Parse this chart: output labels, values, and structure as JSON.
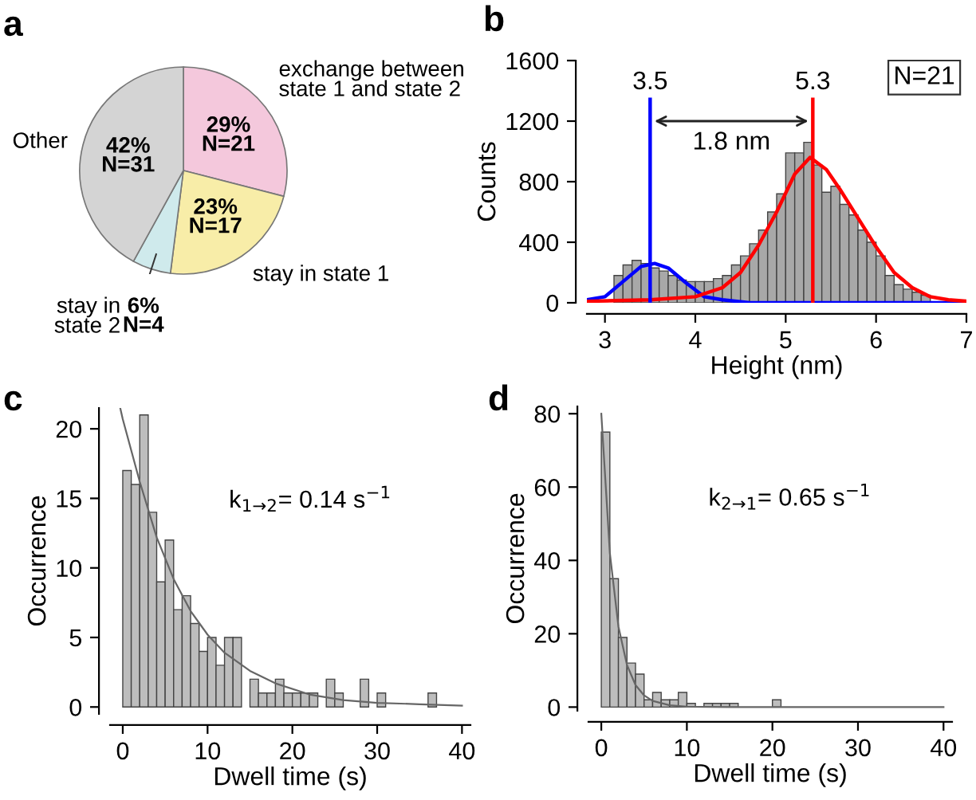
{
  "chart_data": [
    {
      "type": "pie",
      "title": "a",
      "categories": [
        "exchange between\nstate 1 and state 2",
        "stay in state 1",
        "stay in\nstate 2",
        "Other"
      ],
      "values": [
        29,
        23,
        6,
        42
      ],
      "colors": [
        "#f4c8dc",
        "#f8eda8",
        "#cfeaec",
        "#d4d4d4"
      ],
      "value_labels": [
        "29%\nN=21",
        "23%\nN=17",
        "6%\nN=4",
        "42%\nN=31"
      ],
      "legend": false
    },
    {
      "type": "histogram",
      "title": "b",
      "xlabel": "Height (nm)",
      "ylabel": "Counts",
      "xlim": [
        2.8,
        7
      ],
      "xticks": [
        3,
        4,
        5,
        6,
        7
      ],
      "ylim": [
        0,
        1600
      ],
      "yticks": [
        0,
        400,
        800,
        1200,
        1600
      ],
      "series": [
        {
          "type": "histogram",
          "color": "#a8a8a8",
          "bins": [
            3.0,
            3.1,
            3.2,
            3.3,
            3.4,
            3.5,
            3.6,
            3.7,
            3.8,
            3.9,
            4.0,
            4.1,
            4.2,
            4.3,
            4.4,
            4.5,
            4.6,
            4.7,
            4.8,
            4.9,
            5.0,
            5.1,
            5.2,
            5.3,
            5.4,
            5.5,
            5.6,
            5.7,
            5.8,
            5.9,
            6.0,
            6.1,
            6.2,
            6.3,
            6.4,
            6.5,
            6.6
          ],
          "values": [
            null,
            180,
            250,
            280,
            260,
            230,
            210,
            180,
            150,
            140,
            140,
            140,
            160,
            180,
            250,
            310,
            390,
            480,
            600,
            720,
            990,
            990,
            1060,
            910,
            730,
            770,
            650,
            580,
            480,
            400,
            310,
            180,
            120,
            90,
            70,
            50
          ]
        },
        {
          "type": "line",
          "color": "#0000ff",
          "x": [
            2.8,
            3.0,
            3.2,
            3.4,
            3.55,
            3.7,
            3.9,
            4.1,
            4.3,
            4.6,
            5.0,
            6.0,
            7.0
          ],
          "values": [
            20,
            40,
            140,
            240,
            260,
            230,
            130,
            40,
            20,
            0,
            0,
            0,
            0
          ]
        },
        {
          "type": "line",
          "color": "#ff0000",
          "x": [
            2.8,
            3.5,
            4.0,
            4.3,
            4.5,
            4.7,
            4.9,
            5.1,
            5.27,
            5.45,
            5.6,
            5.8,
            6.0,
            6.2,
            6.4,
            6.6,
            6.8,
            7.0
          ],
          "values": [
            10,
            20,
            40,
            100,
            200,
            380,
            600,
            850,
            960,
            880,
            750,
            560,
            370,
            200,
            100,
            40,
            20,
            10
          ]
        }
      ],
      "ref_lines": [
        {
          "axis": "x",
          "value": 3.5,
          "label": "3.5",
          "color": "#0000ff"
        },
        {
          "axis": "x",
          "value": 5.3,
          "label": "5.3",
          "color": "#ff0000"
        }
      ],
      "annotations": [
        "1.8 nm",
        "N=21"
      ],
      "legend": false,
      "grid": false
    },
    {
      "type": "histogram",
      "title": "c",
      "xlabel": "Dwell time (s)",
      "ylabel": "Occurrence",
      "xlim": [
        -1.5,
        41
      ],
      "xticks": [
        0,
        10,
        20,
        30,
        40
      ],
      "ylim": [
        -0.5,
        21.5
      ],
      "yticks": [
        0,
        5,
        10,
        15,
        20
      ],
      "series": [
        {
          "type": "histogram",
          "color": "#bdbdbd",
          "bins": [
            0,
            1,
            2,
            3,
            4,
            5,
            6,
            7,
            8,
            9,
            10,
            11,
            12,
            13,
            14,
            15,
            16,
            17,
            18,
            19,
            20,
            21,
            22,
            23,
            24,
            25,
            26,
            27,
            28,
            29,
            30,
            31,
            32,
            33,
            34,
            35,
            36,
            37
          ],
          "values": [
            17,
            16,
            21,
            14,
            9,
            12,
            7,
            8,
            6,
            4,
            5,
            3,
            5,
            5,
            null,
            2,
            1,
            1,
            2,
            1,
            1,
            1,
            1,
            null,
            2,
            1,
            null,
            null,
            2,
            null,
            1,
            null,
            null,
            null,
            null,
            null,
            1
          ]
        },
        {
          "type": "line",
          "color": "#666666",
          "x": [
            -0.3,
            0,
            2,
            4,
            6,
            8,
            10,
            12,
            15,
            18,
            22,
            26,
            30,
            35,
            40
          ],
          "values": [
            21.5,
            20.7,
            16.2,
            12.2,
            9.2,
            6.9,
            5.2,
            3.9,
            2.6,
            1.7,
            0.9,
            0.5,
            0.3,
            0.2,
            0.1
          ]
        }
      ],
      "annotations": [
        "k$_{1→2}$= 0.14 s$^{−1}$"
      ],
      "legend": false,
      "grid": false
    },
    {
      "type": "histogram",
      "title": "d",
      "xlabel": "Dwell time (s)",
      "ylabel": "Occurrence",
      "xlim": [
        -1.5,
        41
      ],
      "xticks": [
        0,
        10,
        20,
        30,
        40
      ],
      "ylim": [
        -1,
        82
      ],
      "yticks": [
        0,
        20,
        40,
        60,
        80
      ],
      "series": [
        {
          "type": "histogram",
          "color": "#bdbdbd",
          "bins": [
            0,
            1,
            2,
            3,
            4,
            5,
            6,
            7,
            8,
            9,
            10,
            11,
            12,
            13,
            14,
            15,
            16,
            17,
            18,
            19,
            20,
            21
          ],
          "values": [
            75,
            35,
            19,
            12,
            9,
            2,
            4,
            2,
            2,
            4,
            1,
            null,
            1,
            1,
            1,
            1,
            null,
            null,
            null,
            null,
            2
          ]
        },
        {
          "type": "line",
          "color": "#666666",
          "x": [
            0,
            1,
            2,
            3,
            4,
            5,
            6,
            8,
            10,
            15,
            20,
            30,
            40
          ],
          "values": [
            80,
            42,
            22,
            11.5,
            6,
            3.2,
            1.7,
            0.5,
            0.1,
            0,
            0,
            0,
            0
          ]
        }
      ],
      "annotations": [
        "k$_{2→1}$= 0.65 s$^{−1}$"
      ],
      "legend": false,
      "grid": false
    }
  ]
}
